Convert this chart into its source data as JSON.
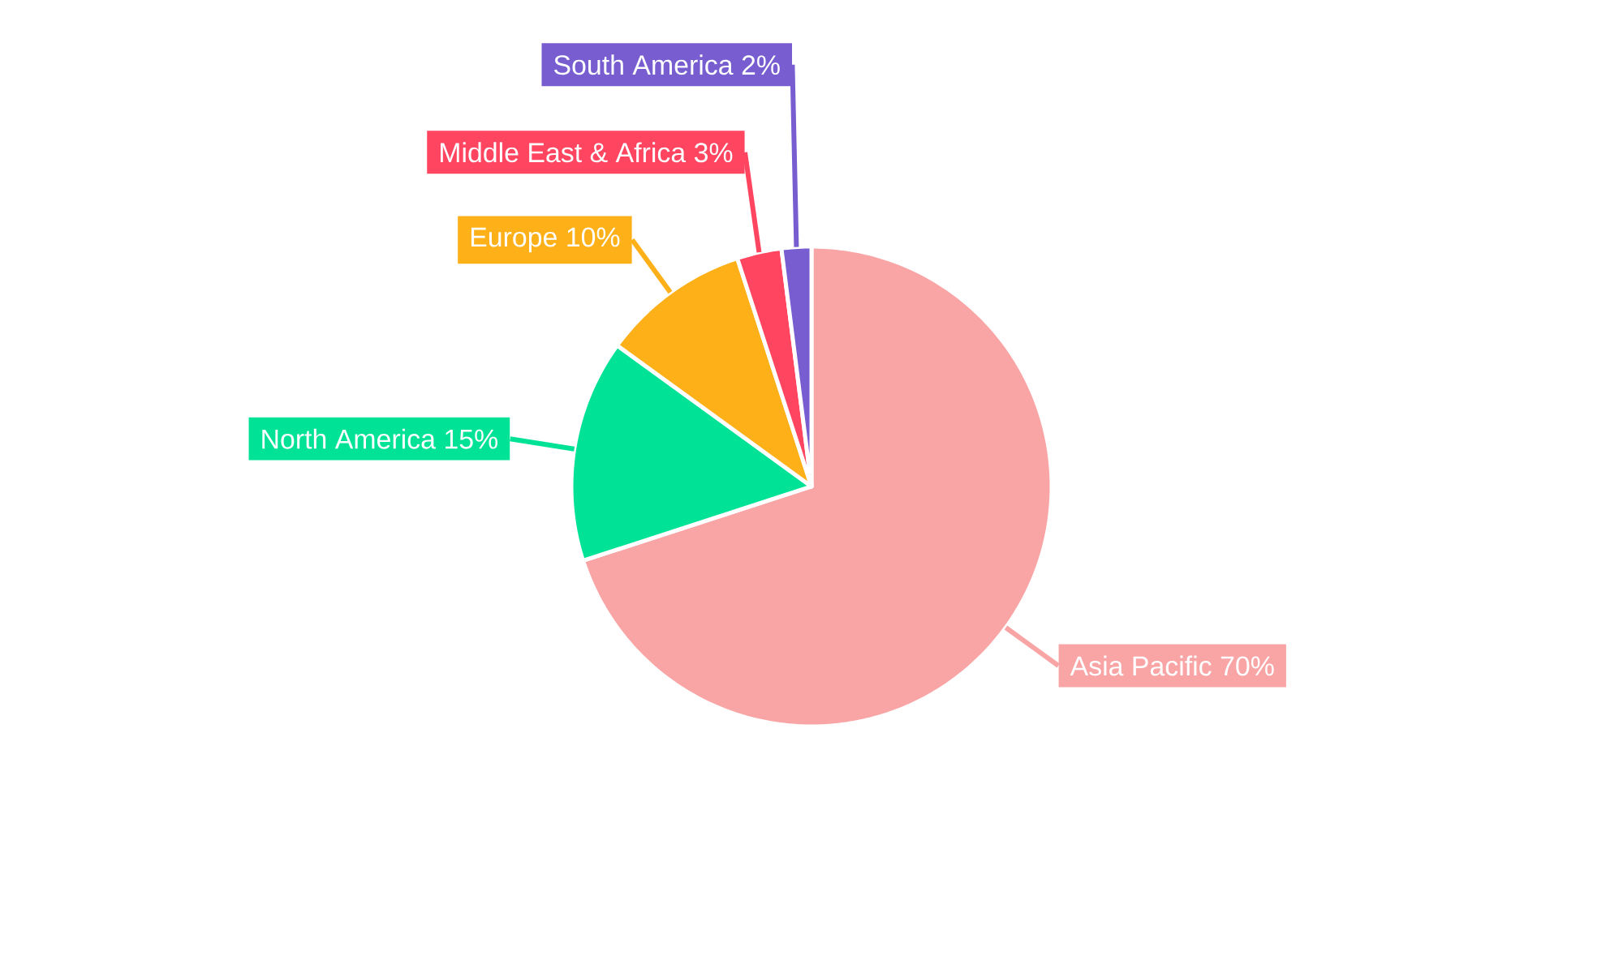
{
  "chart_data": {
    "type": "pie",
    "categories": [
      "Asia Pacific",
      "North America",
      "Europe",
      "Middle East & Africa",
      "South America"
    ],
    "values": [
      70,
      15,
      10,
      3,
      2
    ],
    "value_labels": [
      "70%",
      "15%",
      "10%",
      "3%",
      "2%"
    ],
    "colors": [
      "#f9a5a6",
      "#00e396",
      "#feb019",
      "#ff4560",
      "#775dd0"
    ]
  }
}
